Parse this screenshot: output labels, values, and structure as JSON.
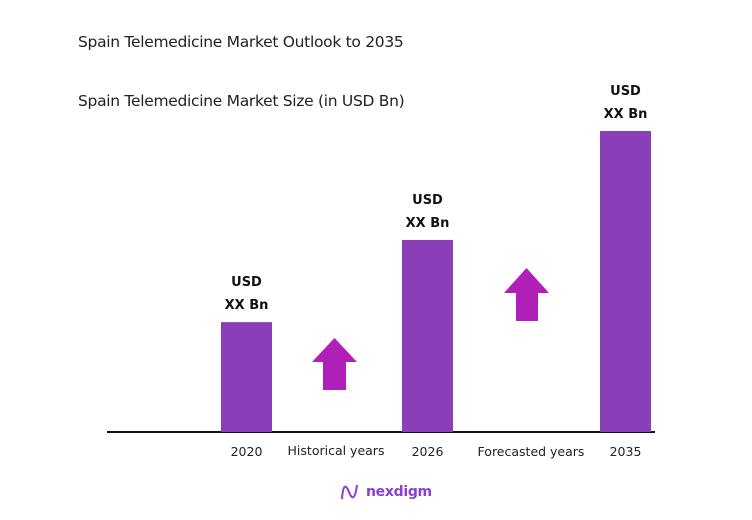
{
  "title": "Spain Telemedicine Market Outlook to 2035",
  "chart_data": {
    "type": "bar",
    "title": "Spain Telemedicine Market Size (in USD Bn)",
    "categories": [
      "2020",
      "2026",
      "2035"
    ],
    "values": [
      36.5,
      63.8,
      100
    ],
    "value_note_relative": true,
    "data_labels": [
      [
        "USD",
        "XX Bn"
      ],
      [
        "USD",
        "XX Bn"
      ],
      [
        "USD",
        "XX Bn"
      ]
    ],
    "period_labels": [
      "Historical years",
      "Forecasted years"
    ],
    "grid": false,
    "bar_color": "#8a3fb8",
    "arrow_color": "#b020b8"
  },
  "logo": {
    "text": "nexdigm",
    "color": "#8a3fd0"
  }
}
